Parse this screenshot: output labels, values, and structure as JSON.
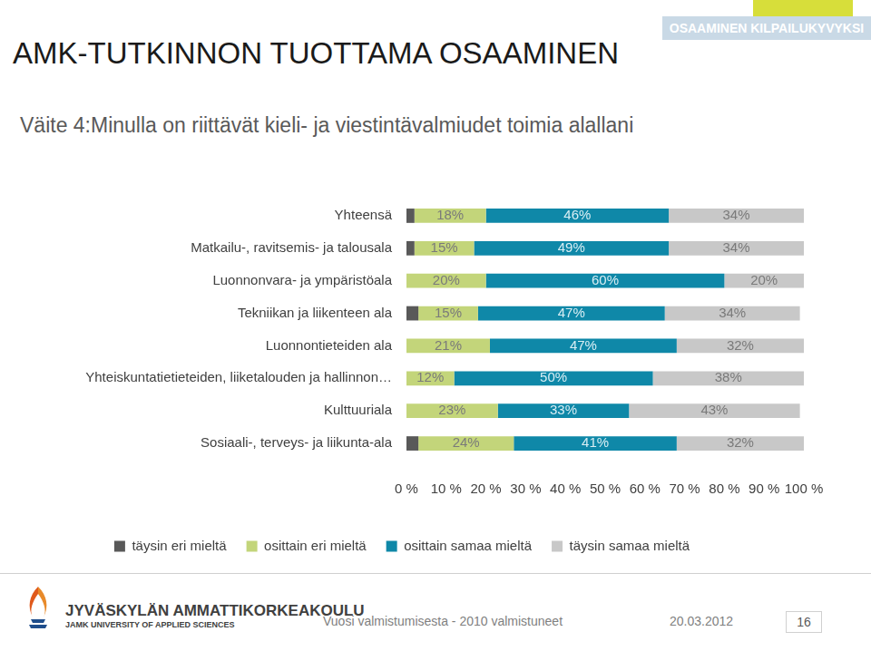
{
  "page": {
    "title": "AMK-TUTKINNON TUOTTAMA OSAAMINEN",
    "header": "OSAAMINEN KILPAILUKYVYKSI",
    "school": "JYVÄSKYLÄN AMMATTIKORKEAKOULU",
    "school_en": "JAMK UNIVERSITY OF APPLIED SCIENCES",
    "footnote": "Vuosi valmistumisesta - 2010 valmistuneet",
    "date": "20.03.2012",
    "page_number": "16"
  },
  "chart_data": {
    "type": "bar",
    "title": "Väite 4:Minulla on riittävät kieli- ja viestintävalmiudet toimia alallani",
    "orientation": "horizontal",
    "stacked": true,
    "grid": false,
    "legend": "bottom",
    "data_labels": true,
    "categories": [
      "Yhteensä",
      "Matkailu-, ravitsemis- ja talousala",
      "Luonnonvara- ja ympäristöala",
      "Tekniikan ja liikenteen ala",
      "Luonnontieteiden ala",
      "Yhteiskuntatietieteiden, liiketalouden ja hallinnon…",
      "Kulttuuriala",
      "Sosiaali-, terveys- ja liikunta-ala"
    ],
    "xlim": [
      0,
      100
    ],
    "xticks": [
      {
        "value": 0,
        "label": "0 %"
      },
      {
        "value": 10,
        "label": "10 %"
      },
      {
        "value": 20,
        "label": "20 %"
      },
      {
        "value": 30,
        "label": "30 %"
      },
      {
        "value": 40,
        "label": "40 %"
      },
      {
        "value": 50,
        "label": "50 %"
      },
      {
        "value": 60,
        "label": "60 %"
      },
      {
        "value": 70,
        "label": "70 %"
      },
      {
        "value": 80,
        "label": "80 %"
      },
      {
        "value": 90,
        "label": "90 %"
      },
      {
        "value": 100,
        "label": "100 %"
      }
    ],
    "series": [
      {
        "name": "täysin eri mieltä",
        "color": "#595959",
        "data_labels": false,
        "values": [
          2,
          2,
          0,
          3,
          0,
          0,
          0,
          3
        ]
      },
      {
        "name": "osittain eri mieltä",
        "color": "#c3d57a",
        "values": [
          18,
          15,
          20,
          15,
          21,
          12,
          23,
          24
        ],
        "value_labels": [
          "18%",
          "15%",
          "20%",
          "15%",
          "21%",
          "12%",
          "23%",
          "24%"
        ]
      },
      {
        "name": "osittain samaa mieltä",
        "color": "#0f88a8",
        "values": [
          46,
          49,
          60,
          47,
          47,
          50,
          33,
          41
        ],
        "value_labels": [
          "46%",
          "49%",
          "60%",
          "47%",
          "47%",
          "50%",
          "33%",
          "41%"
        ]
      },
      {
        "name": "täysin samaa mieltä",
        "color": "#c8c8c8",
        "values": [
          34,
          34,
          20,
          34,
          32,
          38,
          43,
          32
        ],
        "value_labels": [
          "34%",
          "34%",
          "20%",
          "34%",
          "32%",
          "38%",
          "43%",
          "32%"
        ]
      }
    ]
  }
}
